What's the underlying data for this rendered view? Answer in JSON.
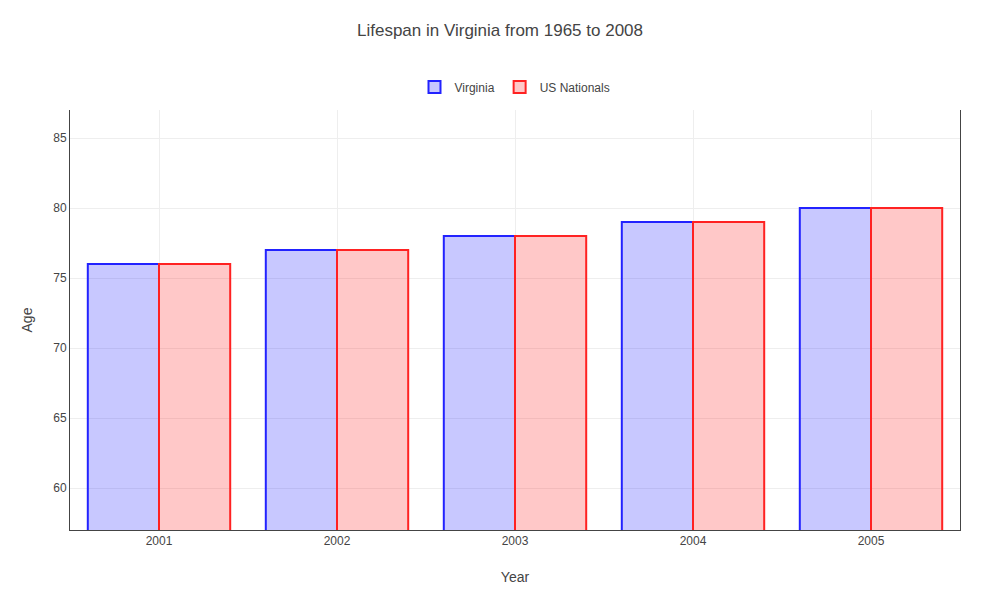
{
  "chart_data": {
    "type": "bar",
    "title": "Lifespan in Virginia from 1965 to 2008",
    "xlabel": "Year",
    "ylabel": "Age",
    "categories": [
      "2001",
      "2002",
      "2003",
      "2004",
      "2005"
    ],
    "series": [
      {
        "name": "Virginia",
        "color": "#2222ff",
        "values": [
          76,
          77,
          78,
          79,
          80
        ]
      },
      {
        "name": "US Nationals",
        "color": "#ff2222",
        "values": [
          76,
          77,
          78,
          79,
          80
        ]
      }
    ],
    "ylim": [
      57,
      87
    ],
    "yticks": [
      60,
      65,
      70,
      75,
      80,
      85
    ],
    "grid": true,
    "legend": "top"
  }
}
